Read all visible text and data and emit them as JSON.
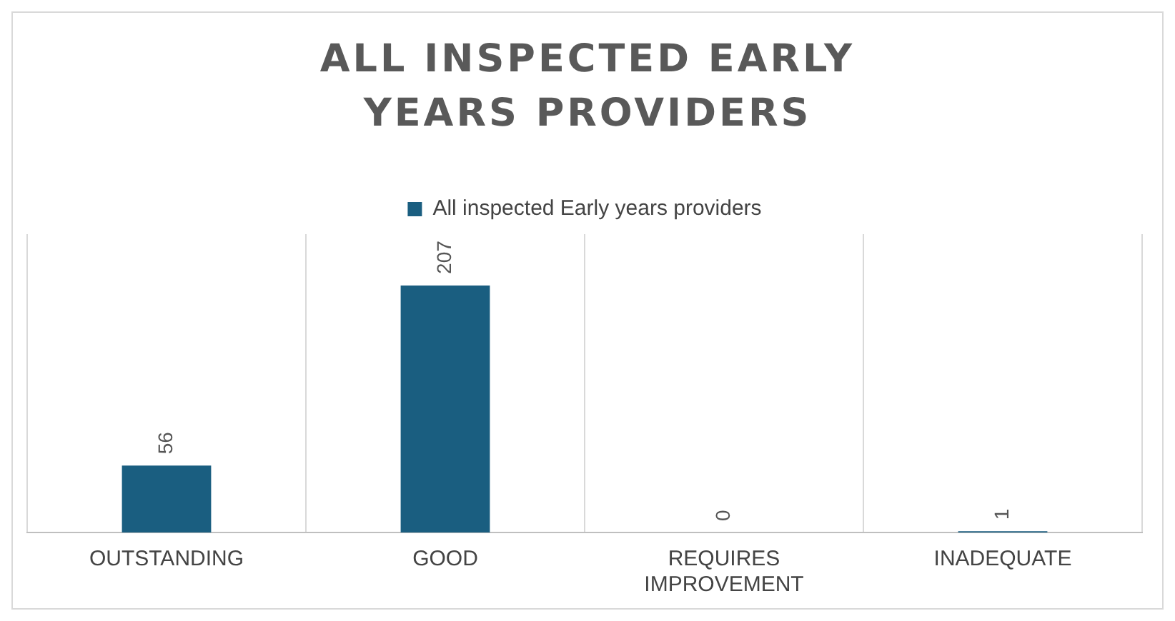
{
  "chart_data": {
    "type": "bar",
    "title": "ALL INSPECTED EARLY YEARS PROVIDERS",
    "categories": [
      "OUTSTANDING",
      "GOOD",
      "REQUIRES IMPROVEMENT",
      "INADEQUATE"
    ],
    "series": [
      {
        "name": "All inspected Early years providers",
        "color": "#1a5e80",
        "values": [
          56,
          207,
          0,
          1
        ]
      }
    ],
    "ylim": [
      0,
      250
    ],
    "data_labels": true,
    "grid": "x",
    "legend": "top",
    "tick_labels": "x"
  }
}
